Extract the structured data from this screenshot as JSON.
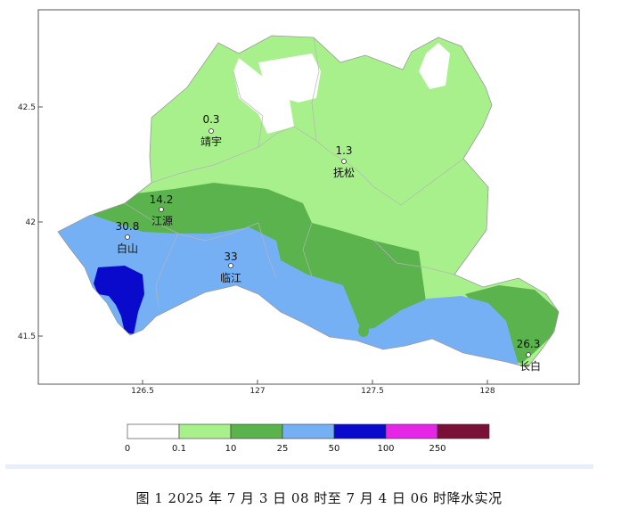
{
  "axes": {
    "x_ticks": [
      "126.5",
      "127",
      "127.5",
      "128"
    ],
    "y_ticks": [
      "42.5",
      "42",
      "41.5"
    ]
  },
  "stations": [
    {
      "name": "靖宇",
      "value": "0.3"
    },
    {
      "name": "抚松",
      "value": "1.3"
    },
    {
      "name": "江源",
      "value": "14.2"
    },
    {
      "name": "白山",
      "value": "30.8"
    },
    {
      "name": "临江",
      "value": "33"
    },
    {
      "name": "长白",
      "value": "26.3"
    }
  ],
  "legend": {
    "breaks": [
      "0",
      "0.1",
      "10",
      "25",
      "50",
      "100",
      "250"
    ],
    "colors": [
      "#ffffff",
      "#a8f08c",
      "#5ab34c",
      "#75b0f5",
      "#0a0acd",
      "#e626e6",
      "#7a1038"
    ]
  },
  "caption": "图 1   2025 年 7 月 3 日 08 时至 7 月 4 日 06 时降水实况"
}
